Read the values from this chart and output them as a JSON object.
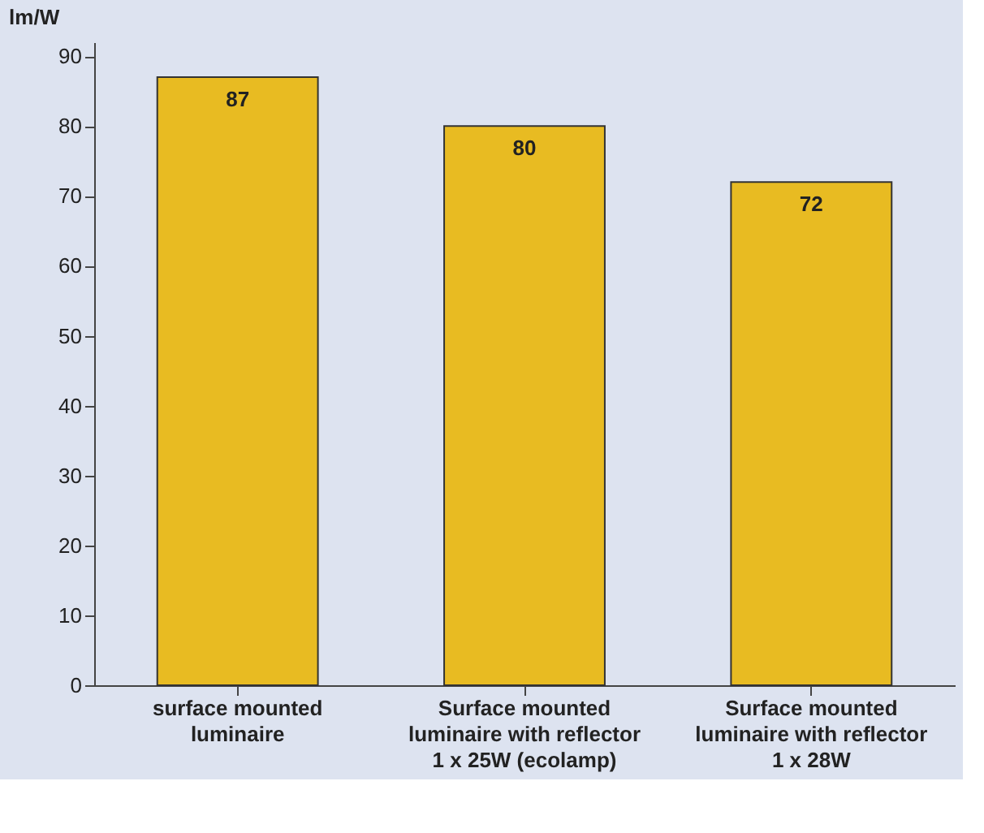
{
  "chart_data": {
    "type": "bar",
    "ylabel": "lm/W",
    "categories": [
      "surface mounted luminaire",
      "Surface mounted luminaire with reflector 1 x 25W (ecolamp)",
      "Surface mounted luminaire with reflector 1 x 28W"
    ],
    "values": [
      87,
      80,
      72
    ],
    "color": "#e8bb22",
    "data_labels": true,
    "ylim": [
      0,
      92
    ],
    "yticks": [
      0,
      10,
      20,
      30,
      40,
      50,
      60,
      70,
      80,
      90
    ],
    "grid": false
  }
}
